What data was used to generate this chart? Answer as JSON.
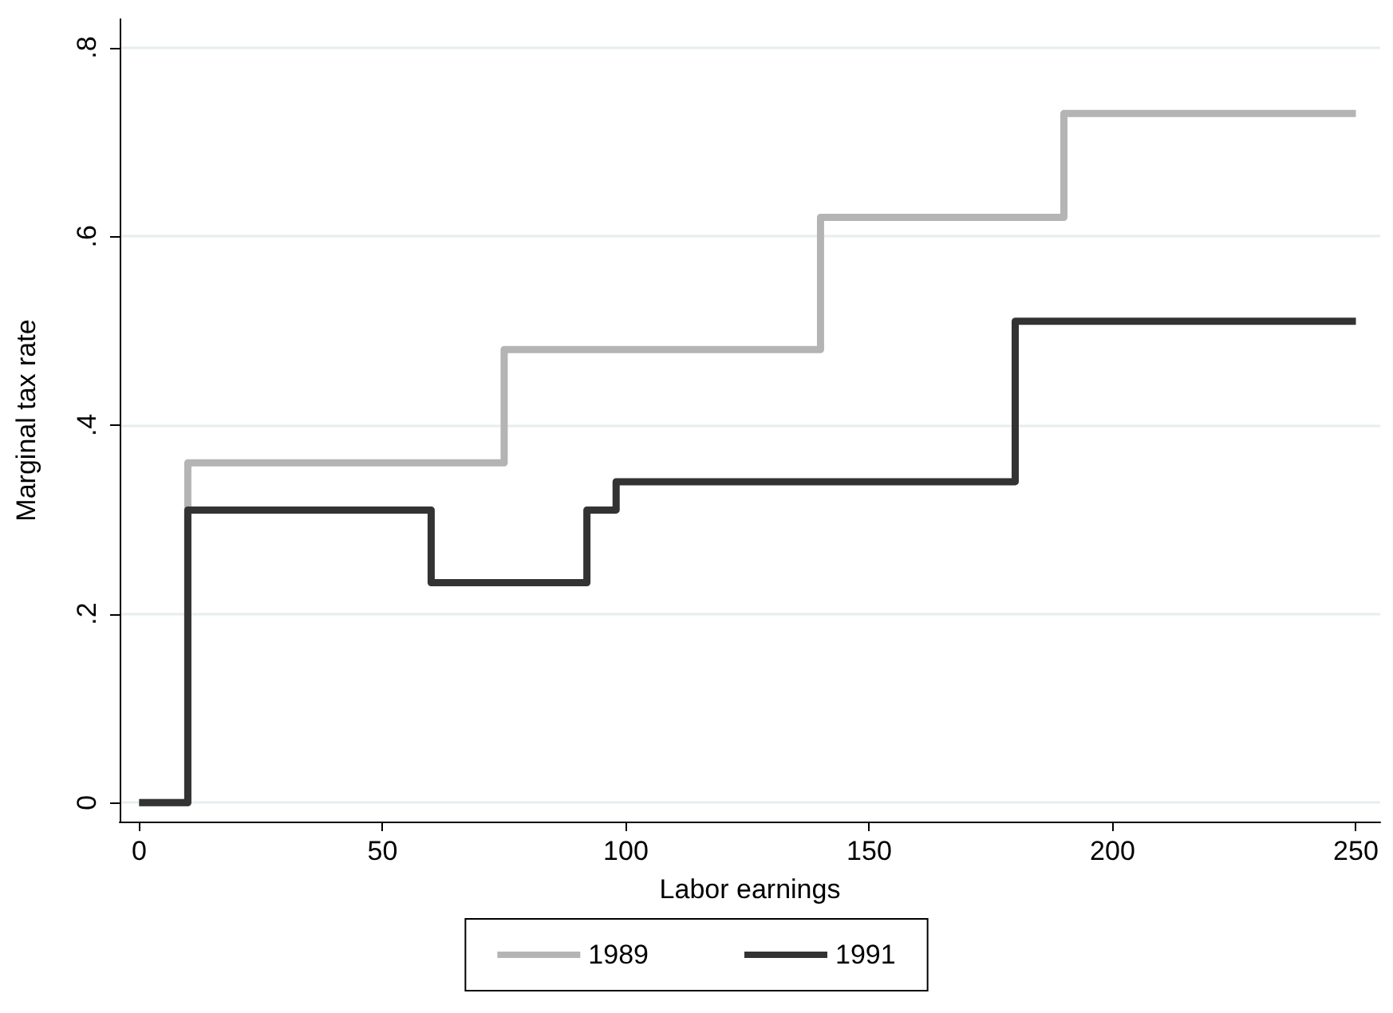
{
  "chart_data": {
    "type": "step",
    "xlabel": "Labor earnings",
    "ylabel": "Marginal tax rate",
    "xlim": [
      -4,
      255
    ],
    "xticks": [
      0,
      50,
      100,
      150,
      200,
      250
    ],
    "ylim": [
      -0.02,
      0.83
    ],
    "yticks": [
      {
        "value": 0,
        "label": "0"
      },
      {
        "value": 0.2,
        "label": ".2"
      },
      {
        "value": 0.4,
        "label": ".4"
      },
      {
        "value": 0.6,
        "label": ".6"
      },
      {
        "value": 0.8,
        "label": ".8"
      }
    ],
    "grid": "y",
    "legend": "bottom",
    "marker": "none",
    "series": [
      {
        "name": "1989",
        "color": "#b4b4b4",
        "x": [
          0,
          10,
          75,
          140,
          190,
          250
        ],
        "values": [
          0,
          0.36,
          0.48,
          0.62,
          0.73,
          0.73
        ]
      },
      {
        "name": "1991",
        "color": "#333333",
        "x": [
          0,
          10,
          60,
          92,
          98,
          180,
          250
        ],
        "values": [
          0,
          0.31,
          0.233,
          0.31,
          0.34,
          0.51,
          0.51
        ]
      }
    ]
  }
}
